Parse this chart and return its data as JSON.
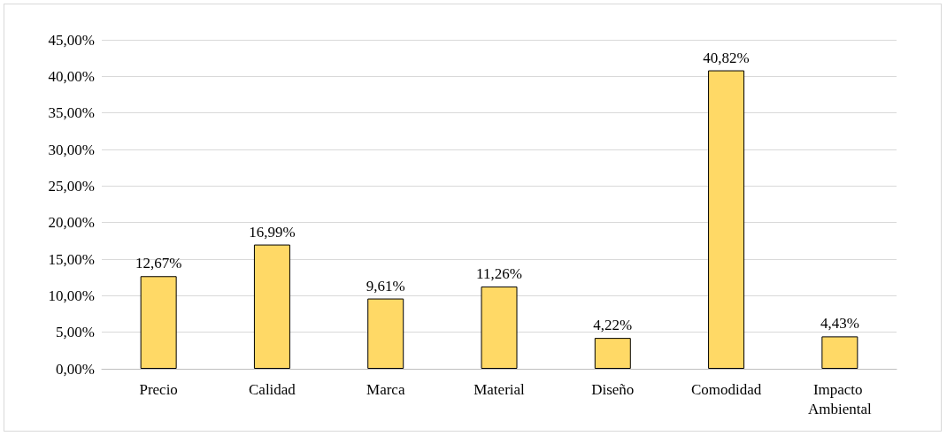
{
  "chart_data": {
    "type": "bar",
    "categories": [
      "Precio",
      "Calidad",
      "Marca",
      "Material",
      "Diseño",
      "Comodidad",
      "Impacto Ambiental"
    ],
    "values": [
      12.67,
      16.99,
      9.61,
      11.26,
      4.22,
      40.82,
      4.43
    ],
    "value_labels": [
      "12,67%",
      "16,99%",
      "9,61%",
      "11,26%",
      "4,22%",
      "40,82%",
      "4,43%"
    ],
    "color": "#ffd966",
    "ylim": [
      0,
      45
    ],
    "yticks": [
      {
        "value": 0,
        "label": "0,00%"
      },
      {
        "value": 5,
        "label": "5,00%"
      },
      {
        "value": 10,
        "label": "10,00%"
      },
      {
        "value": 15,
        "label": "15,00%"
      },
      {
        "value": 20,
        "label": "20,00%"
      },
      {
        "value": 25,
        "label": "25,00%"
      },
      {
        "value": 30,
        "label": "30,00%"
      },
      {
        "value": 35,
        "label": "35,00%"
      },
      {
        "value": 40,
        "label": "40,00%"
      },
      {
        "value": 45,
        "label": "45,00%"
      }
    ],
    "grid": "y"
  }
}
